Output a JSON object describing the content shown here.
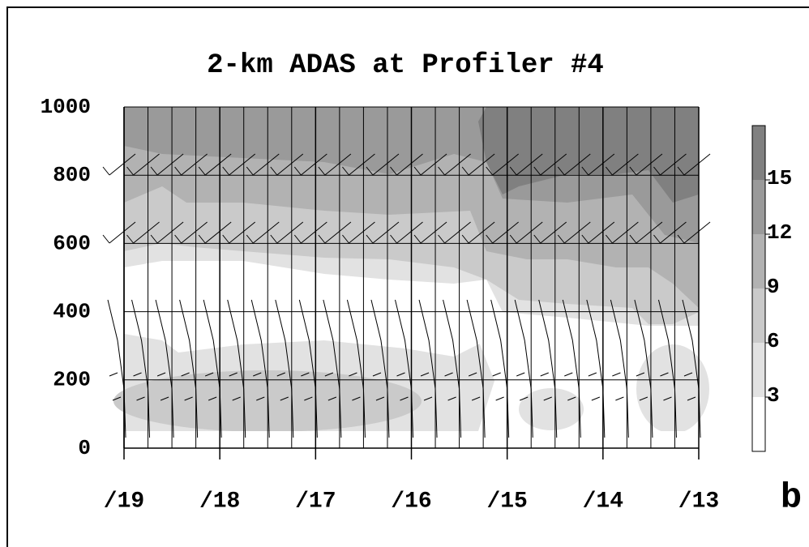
{
  "chart_data": {
    "type": "contour",
    "title": "2-km ADAS at Profiler #4",
    "categories": [
      "/19",
      "/18",
      "/17",
      "/16",
      "/15",
      "/14",
      "/13"
    ],
    "ylim": [
      0,
      1000
    ],
    "yticks": [
      0,
      200,
      400,
      600,
      800,
      1000
    ],
    "grid": true,
    "clim": [
      0,
      18
    ],
    "cticks": [
      3,
      6,
      9,
      12,
      15
    ],
    "colors": [
      "#ffffff",
      "#e2e2e2",
      "#cacaca",
      "#b2b2b2",
      "#9a9a9a",
      "#808080"
    ],
    "panel_label": "b"
  }
}
